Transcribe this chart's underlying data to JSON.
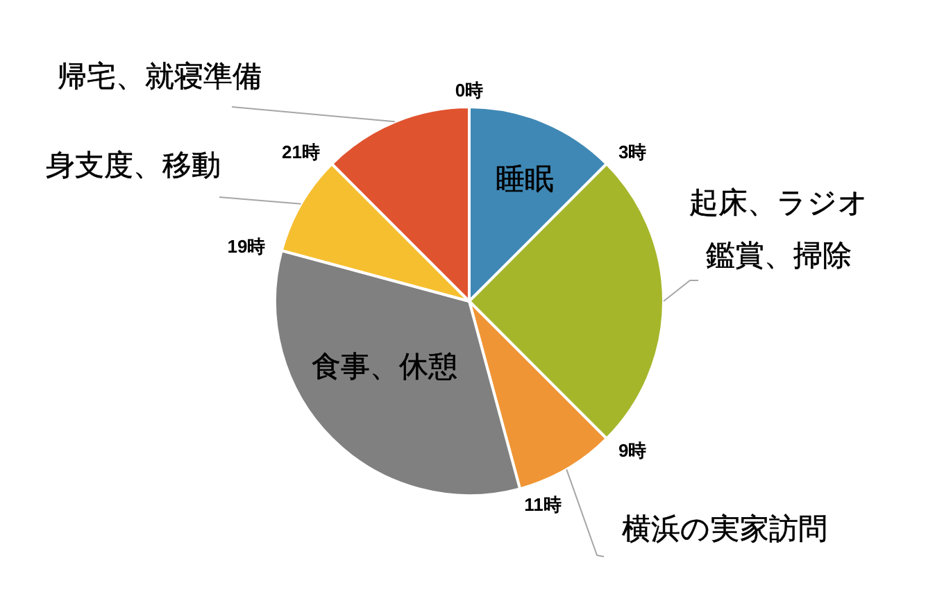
{
  "chart_data": {
    "type": "pie",
    "categories": [
      "睡眠",
      "起床、ラジオ鑑賞、掃除",
      "横浜の実家訪問",
      "食事、休憩",
      "身支度、移動",
      "帰宅、就寝準備"
    ],
    "values": [
      12.5,
      25,
      8.3,
      33.4,
      8.3,
      12.5
    ],
    "colors": [
      "#3f88b5",
      "#a5b62a",
      "#f09535",
      "#808080",
      "#f6bf30",
      "#e0532f"
    ],
    "annotations": [
      "0時",
      "3時",
      "9時",
      "11時",
      "19時",
      "21時"
    ]
  }
}
